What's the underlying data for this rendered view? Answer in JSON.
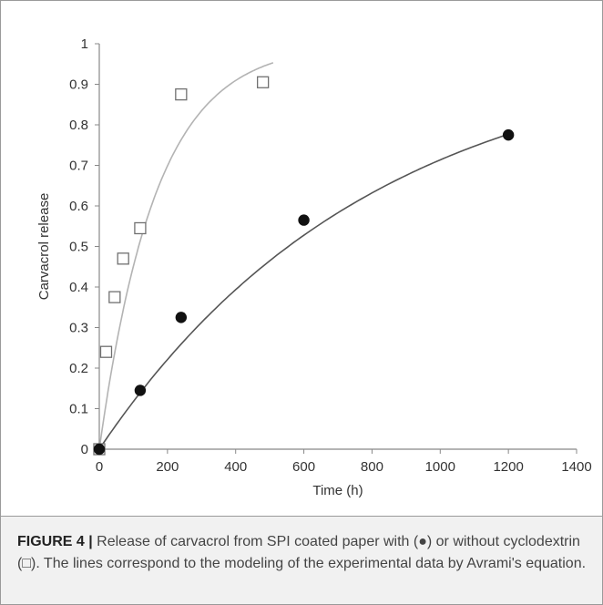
{
  "chart_data": {
    "type": "scatter",
    "xlabel": "Time (h)",
    "ylabel": "Carvacrol release",
    "xlim": [
      0,
      1400
    ],
    "ylim": [
      0,
      1
    ],
    "xticks": [
      0,
      200,
      400,
      600,
      800,
      1000,
      1200,
      1400
    ],
    "yticks": [
      0,
      0.1,
      0.2,
      0.3,
      0.4,
      0.5,
      0.6,
      0.7,
      0.8,
      0.9,
      1
    ],
    "grid": false,
    "series": [
      {
        "marker": "open-square",
        "color": "#707070",
        "points": [
          [
            0,
            0
          ],
          [
            20,
            0.24
          ],
          [
            45,
            0.375
          ],
          [
            70,
            0.47
          ],
          [
            120,
            0.545
          ],
          [
            240,
            0.875
          ],
          [
            480,
            0.905
          ]
        ],
        "fit": {
          "model": "avrami",
          "k": 0.006,
          "n": 1,
          "x_max": 510,
          "color": "#b3b3b3"
        }
      },
      {
        "marker": "filled-circle",
        "color": "#111111",
        "points": [
          [
            0,
            0
          ],
          [
            120,
            0.145
          ],
          [
            240,
            0.325
          ],
          [
            600,
            0.565
          ],
          [
            1200,
            0.775
          ]
        ],
        "fit": {
          "model": "avrami",
          "k": 0.00125,
          "n": 1,
          "x_max": 1200,
          "color": "#555555"
        }
      }
    ]
  },
  "caption": {
    "label": "FIGURE 4 |",
    "text": " Release of carvacrol from SPI coated paper with (●) or without cyclodextrin (□). The lines correspond to the modeling of the experimental data by Avrami's equation."
  }
}
